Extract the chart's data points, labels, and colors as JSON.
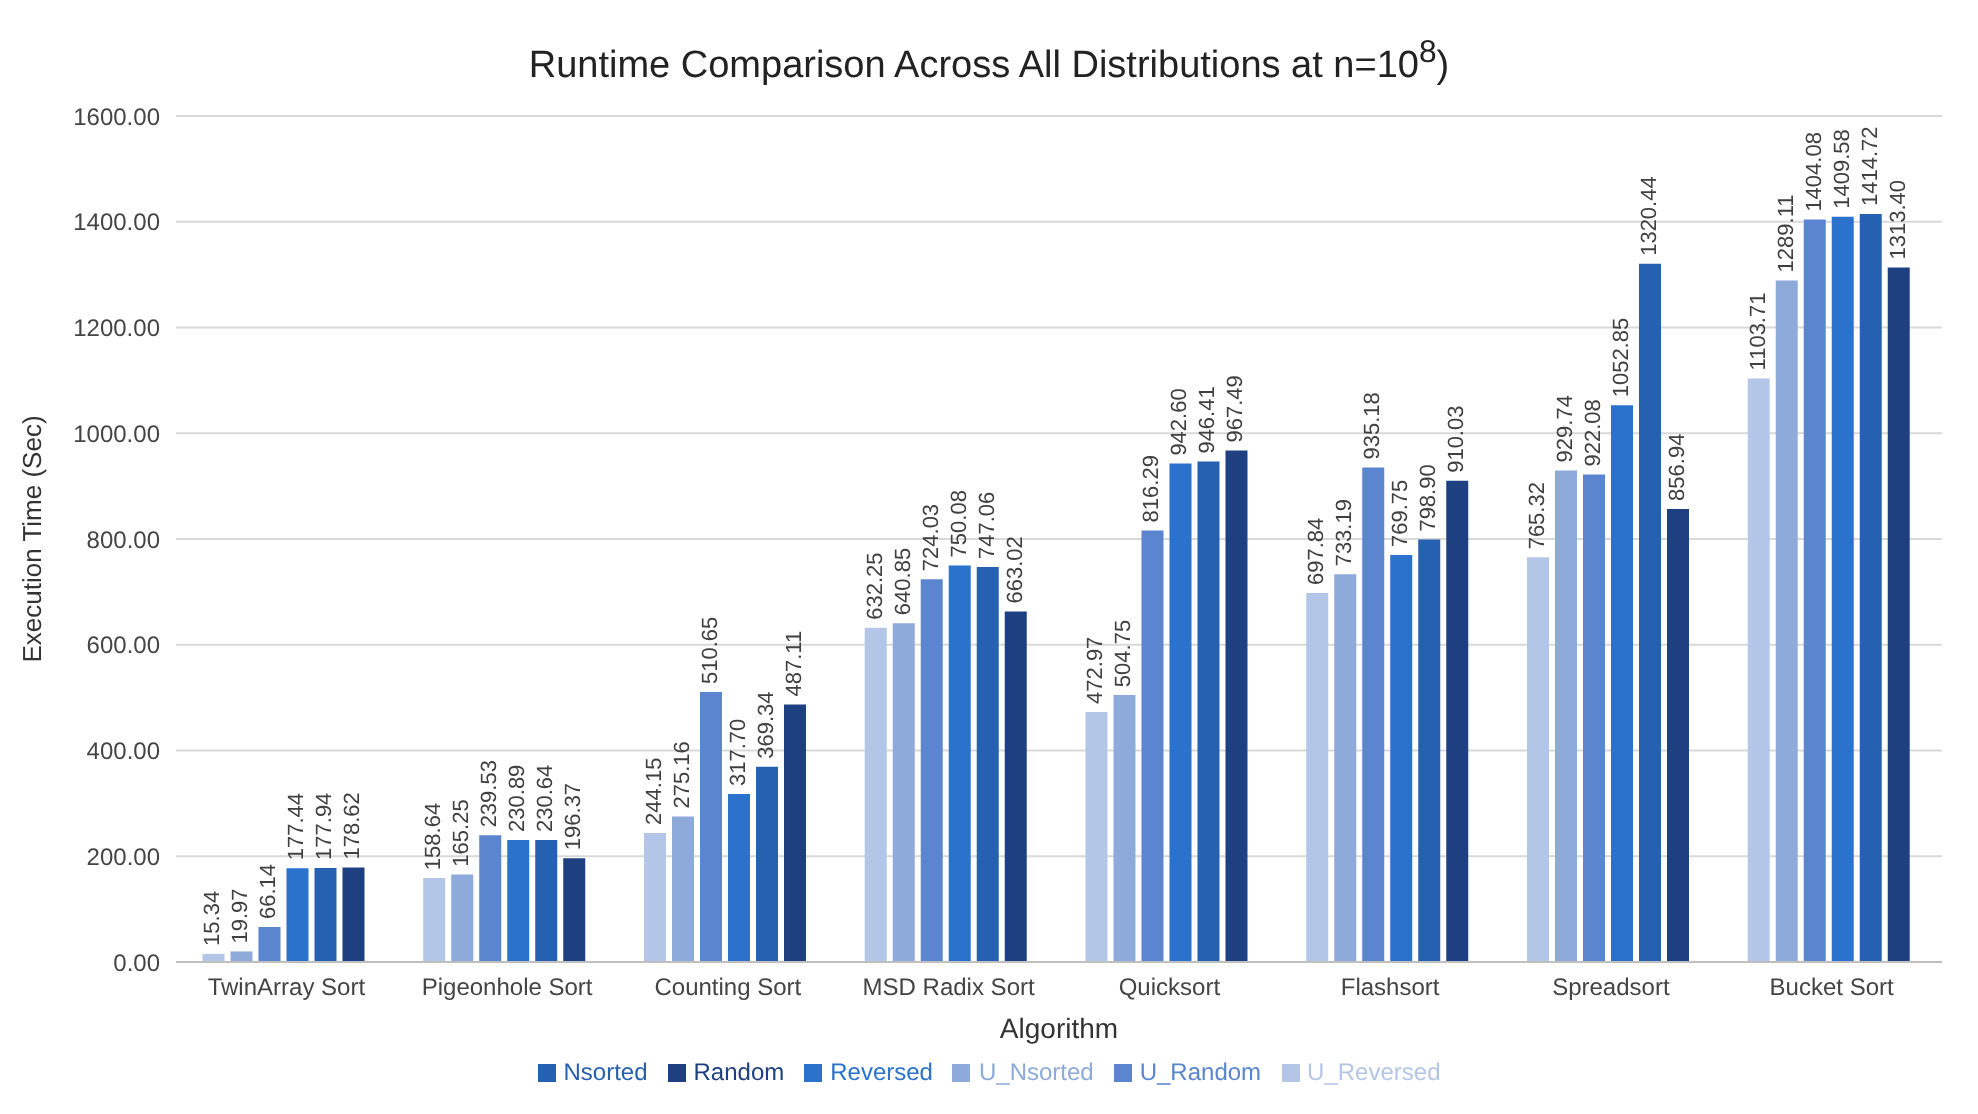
{
  "chart_data": {
    "type": "bar",
    "title": "Runtime Comparison Across All Distributions at n=10$^{8}$)",
    "xlabel": "Algorithm",
    "ylabel": "Execution Time (Sec)",
    "categories": [
      "TwinArray Sort",
      "Pigeonhole Sort",
      "Counting Sort",
      "MSD Radix Sort",
      "Quicksort",
      "Flashsort",
      "Spreadsort",
      "Bucket Sort"
    ],
    "series": [
      {
        "name": "U_Reversed",
        "color": "#b4c6e7",
        "values": [
          15.34,
          158.64,
          244.15,
          632.25,
          472.97,
          697.84,
          765.32,
          1103.71
        ],
        "value_labels": [
          "15.34",
          "158.64",
          "244.15",
          "632.25",
          "472.97",
          "697.84",
          "765.32",
          "1103.71"
        ]
      },
      {
        "name": "U_Nsorted",
        "color": "#8eaadb",
        "values": [
          19.97,
          165.25,
          275.16,
          640.85,
          504.75,
          733.19,
          929.74,
          1289.11
        ],
        "value_labels": [
          "19.97",
          "165.25",
          "275.16",
          "640.85",
          "504.75",
          "733.19",
          "929.74",
          "1289.11"
        ]
      },
      {
        "name": "U_Random",
        "color": "#5b86cf",
        "values": [
          66.14,
          239.53,
          510.65,
          724.03,
          816.29,
          935.18,
          922.08,
          1404.08
        ],
        "value_labels": [
          "66.14",
          "239.53",
          "510.65",
          "724.03",
          "816.29",
          "935.18",
          "922.08",
          "1404.08"
        ]
      },
      {
        "name": "Reversed",
        "color": "#2a72cc",
        "values": [
          177.44,
          230.89,
          317.7,
          750.08,
          942.6,
          769.75,
          1052.85,
          1409.58
        ],
        "value_labels": [
          "177.44",
          "230.89",
          "317.70",
          "750.08",
          "942.60",
          "769.75",
          "1052.85",
          "1409.58"
        ]
      },
      {
        "name": "Nsorted",
        "color": "#2660b0",
        "values": [
          177.94,
          230.64,
          369.34,
          747.06,
          946.41,
          798.9,
          1320.44,
          1414.72
        ],
        "value_labels": [
          "177.94",
          "230.64",
          "369.34",
          "747.06",
          "946.41",
          "798.90",
          "1320.44",
          "1414.72"
        ]
      },
      {
        "name": "Random",
        "color": "#1e4080",
        "values": [
          178.62,
          196.37,
          487.11,
          663.02,
          967.49,
          910.03,
          856.94,
          1313.4
        ],
        "value_labels": [
          "178.62",
          "196.37",
          "487.11",
          "663.02",
          "967.49",
          "910.03",
          "856.94",
          "1313.40"
        ]
      }
    ],
    "ylim": [
      0,
      1600
    ],
    "yticks": [
      {
        "value": 0,
        "label": "0.00"
      },
      {
        "value": 200,
        "label": "200.00"
      },
      {
        "value": 400,
        "label": "400.00"
      },
      {
        "value": 600,
        "label": "600.00"
      },
      {
        "value": 800,
        "label": "800.00"
      },
      {
        "value": 1000,
        "label": "1000.00"
      },
      {
        "value": 1200,
        "label": "1200.00"
      },
      {
        "value": 1400,
        "label": "1400.00"
      },
      {
        "value": 1600,
        "label": "1600.00"
      }
    ],
    "grid": "y",
    "legend": "bottom"
  }
}
